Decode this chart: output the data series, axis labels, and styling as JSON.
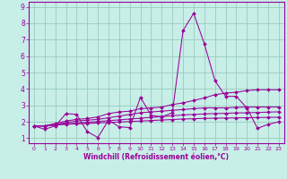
{
  "xlabel": "Windchill (Refroidissement éolien,°C)",
  "bg_color": "#c8eee8",
  "line_color": "#990099",
  "grid_color": "#99ccbb",
  "xlim": [
    -0.5,
    23.5
  ],
  "ylim": [
    0.7,
    9.3
  ],
  "xticks": [
    0,
    1,
    2,
    3,
    4,
    5,
    6,
    7,
    8,
    9,
    10,
    11,
    12,
    13,
    14,
    15,
    16,
    17,
    18,
    19,
    20,
    21,
    22,
    23
  ],
  "yticks": [
    1,
    2,
    3,
    4,
    5,
    6,
    7,
    8,
    9
  ],
  "series": [
    [
      1.75,
      1.55,
      1.75,
      2.5,
      2.45,
      1.4,
      1.05,
      2.1,
      1.7,
      1.65,
      3.5,
      2.4,
      2.3,
      2.55,
      7.55,
      8.6,
      6.75,
      4.5,
      3.55,
      3.55,
      2.85,
      1.6,
      1.85,
      2.0
    ],
    [
      1.75,
      1.75,
      1.9,
      2.05,
      2.15,
      2.2,
      2.3,
      2.5,
      2.6,
      2.65,
      2.8,
      2.85,
      2.9,
      3.05,
      3.15,
      3.3,
      3.45,
      3.65,
      3.75,
      3.8,
      3.9,
      3.95,
      3.95,
      3.95
    ],
    [
      1.75,
      1.75,
      1.85,
      1.95,
      2.05,
      2.1,
      2.15,
      2.25,
      2.35,
      2.45,
      2.55,
      2.6,
      2.65,
      2.7,
      2.75,
      2.8,
      2.85,
      2.85,
      2.85,
      2.88,
      2.9,
      2.9,
      2.9,
      2.9
    ],
    [
      1.75,
      1.75,
      1.82,
      1.88,
      1.92,
      1.97,
      2.02,
      2.07,
      2.12,
      2.17,
      2.22,
      2.27,
      2.32,
      2.37,
      2.42,
      2.45,
      2.48,
      2.5,
      2.52,
      2.54,
      2.55,
      2.57,
      2.59,
      2.61
    ],
    [
      1.75,
      1.75,
      1.8,
      1.85,
      1.88,
      1.9,
      1.93,
      1.96,
      1.99,
      2.02,
      2.05,
      2.08,
      2.11,
      2.14,
      2.17,
      2.19,
      2.21,
      2.22,
      2.23,
      2.24,
      2.25,
      2.26,
      2.27,
      2.28
    ]
  ]
}
